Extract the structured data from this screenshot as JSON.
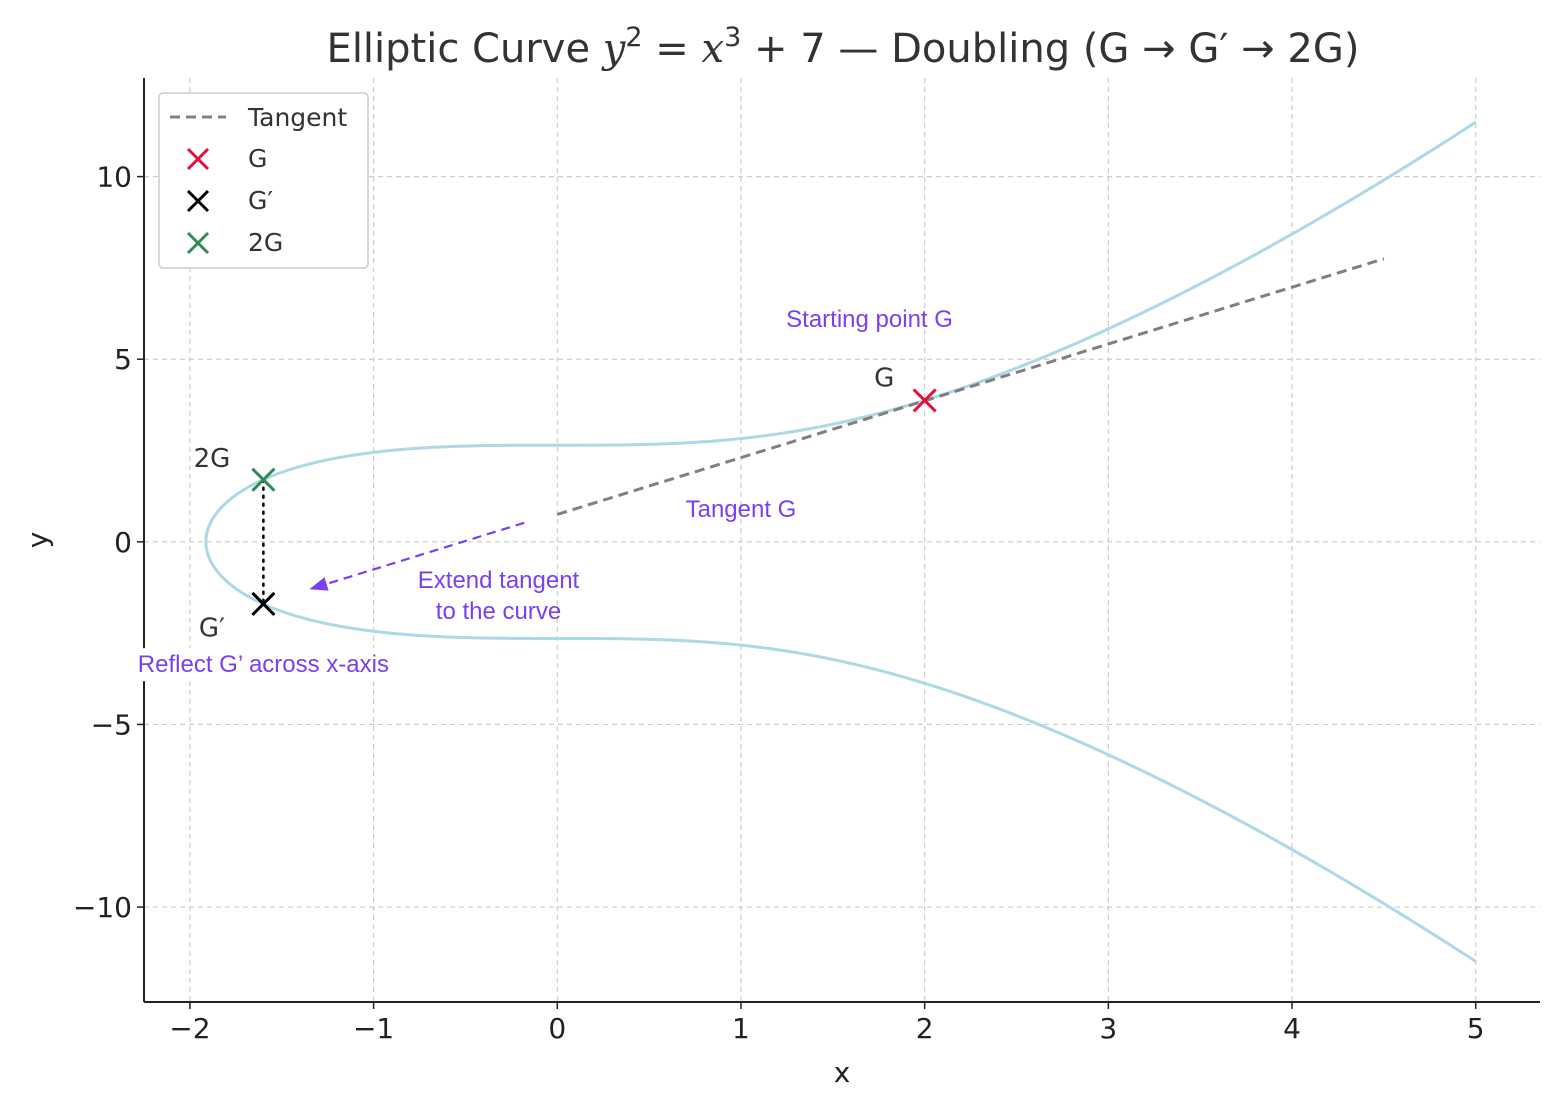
{
  "chart_data": {
    "type": "line",
    "title_prefix": "Elliptic Curve ",
    "title_eq_y": "y",
    "title_eq_y_exp": "2",
    "title_eq_mid": " = ",
    "title_eq_x": "x",
    "title_eq_x_exp": "3",
    "title_eq_tail": " + 7",
    "title_suffix": " — Doubling (G → G′ → 2G)",
    "xlabel": "x",
    "ylabel": "y",
    "xlim": [
      -2.25,
      5.35
    ],
    "ylim": [
      -12.6,
      12.7
    ],
    "xticks": [
      -2,
      -1,
      0,
      1,
      2,
      3,
      4,
      5
    ],
    "yticks": [
      -10,
      -5,
      0,
      5,
      10
    ],
    "xtick_labels": [
      "−2",
      "−1",
      "0",
      "1",
      "2",
      "3",
      "4",
      "5"
    ],
    "ytick_labels": [
      "−10",
      "−5",
      "0",
      "5",
      "10"
    ],
    "grid": true,
    "legend_position": "top-left",
    "curve": {
      "equation": "y^2 = x^3 + 7",
      "a": 0,
      "b": 7,
      "x_range": [
        -1.913,
        5
      ],
      "color": "#add8e6"
    },
    "tangent": {
      "name": "Tangent",
      "x_range": [
        0,
        4.5
      ],
      "y_range": [
        0.75,
        7.75
      ],
      "color": "#808080",
      "style": "dashed"
    },
    "points": [
      {
        "name": "G",
        "x": 2.0,
        "y": 3.873,
        "color": "#dc143c"
      },
      {
        "name": "G′",
        "x": -1.6,
        "y": -1.7,
        "color": "#000000"
      },
      {
        "name": "2G",
        "x": -1.6,
        "y": 1.7,
        "color": "#2e8b57"
      }
    ],
    "point_labels": [
      {
        "text": "G",
        "x": 1.78,
        "y": 4.5
      },
      {
        "text": "2G",
        "x": -1.88,
        "y": 2.3
      },
      {
        "text": "G′",
        "x": -1.88,
        "y": -2.35
      }
    ],
    "reflection_segment": {
      "x": -1.6,
      "y_range": [
        -1.7,
        1.7
      ],
      "style": "dotted",
      "color": "#000000"
    },
    "extend_arrow": {
      "from": [
        -0.18,
        0.52
      ],
      "to": [
        -1.35,
        -1.3
      ],
      "color": "#7b3ff2",
      "style": "dashed"
    },
    "annotations": [
      {
        "text": "Starting point G",
        "x": 1.7,
        "y": 6.1
      },
      {
        "text": "Tangent G",
        "x": 1.0,
        "y": 0.9
      },
      {
        "text": "Extend tangent",
        "x": -0.32,
        "y": -1.05
      },
      {
        "text": "to the curve",
        "x": -0.32,
        "y": -1.9
      },
      {
        "text": "Reflect G’ across x-axis",
        "x": -1.6,
        "y": -3.35
      }
    ],
    "legend": [
      "Tangent",
      "G",
      "G′",
      "2G"
    ]
  }
}
